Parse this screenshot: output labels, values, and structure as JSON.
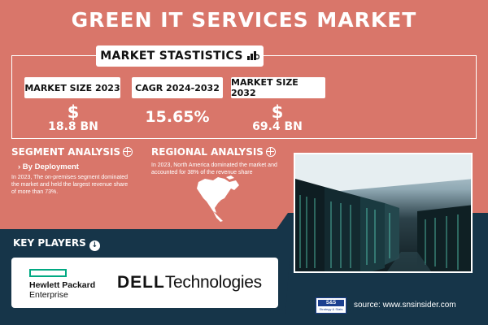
{
  "title": "GREEN IT SERVICES MARKET",
  "market_statistics": {
    "heading": "MARKET STASTISTICS",
    "icon": "chart-cash-icon",
    "stats": [
      {
        "label": "MARKET SIZE 2023",
        "prefix": "$",
        "value": "18.8 BN"
      },
      {
        "label": "CAGR 2024-2032",
        "prefix": "",
        "value": "15.65%"
      },
      {
        "label": "MARKET SIZE 2032",
        "prefix": "$",
        "value": "69.4 BN"
      }
    ]
  },
  "segment_analysis": {
    "heading": "SEGMENT ANALYSIS",
    "icon": "globe-icon",
    "subheading": "› By Deployment",
    "text_line1": "In 2023, The on-premises segment dominated",
    "text_line2": "the market and held the largest revenue share",
    "text_line3": "of more than 73%."
  },
  "regional_analysis": {
    "heading": "REGIONAL ANALYSIS",
    "icon": "globe-icon",
    "text_line1": "In 2023, North America dominated the market and",
    "text_line2": "accounted for 38% of the revenue share",
    "map": "north-america-map"
  },
  "photo": "server-room-photo",
  "key_players": {
    "heading": "KEY PLAYERS",
    "icon": "download-icon",
    "logos": {
      "hpe_line1": "Hewlett Packard",
      "hpe_line2": "Enterprise",
      "dell_brand": "DELL",
      "dell_suffix": "Technologies"
    }
  },
  "footer": {
    "logo_top": "S&S",
    "logo_bottom": "Strategy & Stats",
    "source": "source: www.snsinsider.com"
  },
  "colors": {
    "coral": "#d9766a",
    "navy": "#163549",
    "white": "#ffffff",
    "hpe_green": "#01a982"
  }
}
